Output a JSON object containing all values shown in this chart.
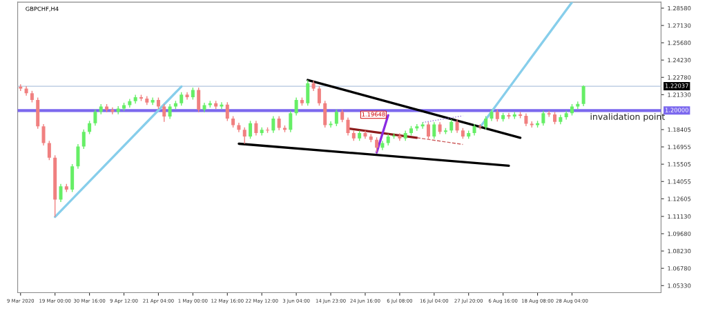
{
  "chart_data": {
    "type": "candlestick",
    "title": "GBPCHF,H4",
    "categories": [
      "9 Mar 2020",
      null,
      null,
      null,
      null,
      null,
      "19 Mar 00:00",
      null,
      null,
      null,
      null,
      null,
      "30 Mar 16:00",
      null,
      null,
      null,
      null,
      null,
      "9 Apr 12:00",
      null,
      null,
      null,
      null,
      null,
      "21 Apr 04:00",
      null,
      null,
      null,
      null,
      null,
      "1 May 00:00",
      null,
      null,
      null,
      null,
      null,
      "12 May 16:00",
      null,
      null,
      null,
      null,
      null,
      "22 May 12:00",
      null,
      null,
      null,
      null,
      null,
      "3 Jun 04:00",
      null,
      null,
      null,
      null,
      null,
      "14 Jun 23:00",
      null,
      null,
      null,
      null,
      null,
      "24 Jun 16:00",
      null,
      null,
      null,
      null,
      null,
      "6 Jul 08:00",
      null,
      null,
      null,
      null,
      null,
      "16 Jul 04:00",
      null,
      null,
      null,
      null,
      null,
      "27 Jul 20:00",
      null,
      null,
      null,
      null,
      null,
      "6 Aug 16:00",
      null,
      null,
      null,
      null,
      null,
      "18 Aug 08:00",
      null,
      null,
      null,
      null,
      null,
      "28 Aug 04:00",
      null,
      null,
      null,
      null,
      null,
      null,
      null,
      null,
      null,
      null,
      null,
      null,
      null,
      null,
      null
    ],
    "ohlc": [
      [
        1.22,
        1.222,
        1.2164,
        1.2184
      ],
      [
        1.2184,
        1.2204,
        1.2125,
        1.2145
      ],
      [
        1.2145,
        1.2165,
        1.2069,
        1.2089
      ],
      [
        1.2089,
        1.2109,
        1.1847,
        1.1867
      ],
      [
        1.1867,
        1.1887,
        1.1707,
        1.1727
      ],
      [
        1.1727,
        1.1747,
        1.1585,
        1.1605
      ],
      [
        1.1605,
        1.1625,
        1.1109,
        1.1254
      ],
      [
        1.1254,
        1.1385,
        1.1234,
        1.1365
      ],
      [
        1.1365,
        1.1385,
        1.1317,
        1.1337
      ],
      [
        1.1337,
        1.1552,
        1.1317,
        1.1532
      ],
      [
        1.1532,
        1.1719,
        1.1512,
        1.1699
      ],
      [
        1.1699,
        1.1842,
        1.1679,
        1.1822
      ],
      [
        1.1822,
        1.1914,
        1.1802,
        1.1894
      ],
      [
        1.1894,
        1.2009,
        1.1874,
        1.1989
      ],
      [
        1.1989,
        1.2054,
        1.1969,
        1.2034
      ],
      [
        1.2034,
        1.2054,
        1.1986,
        1.2006
      ],
      [
        1.2006,
        1.2026,
        1.1969,
        1.1989
      ],
      [
        1.1989,
        1.2037,
        1.1969,
        1.2017
      ],
      [
        1.2017,
        1.2065,
        1.1997,
        1.2045
      ],
      [
        1.2045,
        1.2098,
        1.2025,
        1.2078
      ],
      [
        1.2078,
        1.2132,
        1.2058,
        1.2112
      ],
      [
        1.2112,
        1.2132,
        1.208,
        1.21
      ],
      [
        1.21,
        1.212,
        1.2047,
        1.2067
      ],
      [
        1.2067,
        1.2109,
        1.2047,
        1.2089
      ],
      [
        1.2089,
        1.2109,
        1.2014,
        1.2034
      ],
      [
        1.2034,
        1.2054,
        1.1905,
        1.195
      ],
      [
        1.195,
        1.2054,
        1.193,
        1.2034
      ],
      [
        1.2034,
        1.2081,
        1.2014,
        1.2061
      ],
      [
        1.2061,
        1.2154,
        1.2041,
        1.2134
      ],
      [
        1.2134,
        1.2154,
        1.2092,
        1.2112
      ],
      [
        1.2112,
        1.2193,
        1.2092,
        1.2173
      ],
      [
        1.2173,
        1.2193,
        1.1986,
        1.2006
      ],
      [
        1.2006,
        1.2065,
        1.1986,
        1.2045
      ],
      [
        1.2045,
        1.2081,
        1.2025,
        1.2061
      ],
      [
        1.2061,
        1.2081,
        1.2014,
        1.2034
      ],
      [
        1.2034,
        1.207,
        1.2014,
        1.205
      ],
      [
        1.205,
        1.207,
        1.1913,
        1.1933
      ],
      [
        1.1933,
        1.1953,
        1.1858,
        1.1878
      ],
      [
        1.1878,
        1.1898,
        1.1819,
        1.1839
      ],
      [
        1.1839,
        1.1859,
        1.1722,
        1.1783
      ],
      [
        1.1783,
        1.1914,
        1.1763,
        1.1894
      ],
      [
        1.1894,
        1.1914,
        1.1791,
        1.1811
      ],
      [
        1.1811,
        1.1859,
        1.1791,
        1.1839
      ],
      [
        1.1839,
        1.1859,
        1.1813,
        1.1833
      ],
      [
        1.1833,
        1.1953,
        1.1813,
        1.1933
      ],
      [
        1.1933,
        1.1953,
        1.1835,
        1.1855
      ],
      [
        1.1855,
        1.1875,
        1.1819,
        1.1839
      ],
      [
        1.1839,
        1.1998,
        1.1819,
        1.1978
      ],
      [
        1.1978,
        1.2109,
        1.1958,
        1.2089
      ],
      [
        1.2089,
        1.2109,
        1.2041,
        1.2061
      ],
      [
        1.2061,
        1.2256,
        1.2041,
        1.2229
      ],
      [
        1.2229,
        1.2249,
        1.2164,
        1.2184
      ],
      [
        1.2184,
        1.2204,
        1.2041,
        1.2061
      ],
      [
        1.2061,
        1.2081,
        1.1858,
        1.1878
      ],
      [
        1.1878,
        1.1909,
        1.1858,
        1.1889
      ],
      [
        1.1889,
        1.2009,
        1.1869,
        1.1989
      ],
      [
        1.1989,
        1.2009,
        1.1902,
        1.1922
      ],
      [
        1.1922,
        1.1942,
        1.1791,
        1.1811
      ],
      [
        1.1811,
        1.1831,
        1.1746,
        1.1766
      ],
      [
        1.1766,
        1.1831,
        1.1746,
        1.1811
      ],
      [
        1.1811,
        1.1831,
        1.1763,
        1.1783
      ],
      [
        1.1783,
        1.1803,
        1.1735,
        1.1755
      ],
      [
        1.1755,
        1.1775,
        1.1649,
        1.1688
      ],
      [
        1.1688,
        1.1747,
        1.1668,
        1.1727
      ],
      [
        1.1727,
        1.1803,
        1.1707,
        1.1783
      ],
      [
        1.1783,
        1.181,
        1.1763,
        1.179
      ],
      [
        1.179,
        1.181,
        1.1746,
        1.1766
      ],
      [
        1.1766,
        1.1831,
        1.1746,
        1.1811
      ],
      [
        1.1811,
        1.187,
        1.1791,
        1.185
      ],
      [
        1.185,
        1.1887,
        1.183,
        1.1867
      ],
      [
        1.1867,
        1.1903,
        1.1847,
        1.1883
      ],
      [
        1.1883,
        1.1903,
        1.1763,
        1.1783
      ],
      [
        1.1783,
        1.1903,
        1.1763,
        1.1883
      ],
      [
        1.1883,
        1.1903,
        1.1802,
        1.1822
      ],
      [
        1.1822,
        1.1853,
        1.1802,
        1.1833
      ],
      [
        1.1833,
        1.1925,
        1.1813,
        1.1905
      ],
      [
        1.1905,
        1.1925,
        1.1813,
        1.1833
      ],
      [
        1.1833,
        1.1853,
        1.1763,
        1.1783
      ],
      [
        1.1783,
        1.1831,
        1.1763,
        1.1811
      ],
      [
        1.1811,
        1.1887,
        1.1791,
        1.1867
      ],
      [
        1.1867,
        1.1887,
        1.1841,
        1.1861
      ],
      [
        1.1861,
        1.1953,
        1.1841,
        1.1933
      ],
      [
        1.1933,
        1.2009,
        1.1913,
        1.1989
      ],
      [
        1.1989,
        1.2009,
        1.1908,
        1.1928
      ],
      [
        1.1928,
        1.1981,
        1.1908,
        1.1961
      ],
      [
        1.1961,
        1.1981,
        1.193,
        1.195
      ],
      [
        1.195,
        1.1987,
        1.193,
        1.1967
      ],
      [
        1.1967,
        1.1987,
        1.1936,
        1.1956
      ],
      [
        1.1956,
        1.1976,
        1.1869,
        1.1889
      ],
      [
        1.1889,
        1.1909,
        1.1858,
        1.1878
      ],
      [
        1.1878,
        1.1914,
        1.1858,
        1.1894
      ],
      [
        1.1894,
        1.1998,
        1.1874,
        1.1978
      ],
      [
        1.1978,
        1.1998,
        1.1947,
        1.1967
      ],
      [
        1.1967,
        1.1987,
        1.1885,
        1.1905
      ],
      [
        1.1905,
        1.1964,
        1.1885,
        1.1944
      ],
      [
        1.1944,
        1.1998,
        1.1924,
        1.1978
      ],
      [
        1.1978,
        1.2054,
        1.1958,
        1.2034
      ],
      [
        1.2034,
        1.2076,
        1.2014,
        1.2056
      ],
      [
        1.2056,
        1.2212,
        1.2036,
        1.2204
      ],
      null,
      null,
      null,
      null,
      null,
      null,
      null,
      null,
      null,
      null,
      null,
      null,
      null
    ],
    "series": [
      {
        "type": "line",
        "color": "#87ceeb",
        "values": [
          null,
          null,
          null,
          null,
          null,
          null,
          1.1109,
          null,
          null,
          null,
          null,
          null,
          null,
          null,
          null,
          null,
          null,
          null,
          null,
          null,
          null,
          null,
          null,
          null,
          null,
          null,
          null,
          null,
          1.2201,
          null,
          null,
          null,
          null,
          null,
          null,
          null,
          null,
          null,
          null,
          null,
          null,
          null,
          null,
          null,
          null,
          null,
          null,
          null,
          null,
          null,
          null,
          null,
          null,
          null,
          null,
          null,
          null,
          null,
          null,
          null,
          null,
          null,
          null,
          null,
          null,
          null,
          null,
          null,
          null,
          null,
          null,
          null,
          null,
          null,
          null,
          null,
          null,
          null,
          null,
          null,
          null,
          null,
          null,
          null,
          null,
          null,
          null,
          null,
          null,
          null,
          null,
          null,
          null,
          null,
          null,
          null,
          null,
          null,
          null,
          null,
          null,
          null,
          null,
          null,
          null,
          null,
          null,
          null,
          null,
          null,
          null,
          null
        ]
      },
      {
        "type": "line",
        "color": "#87ceeb",
        "values": [
          null,
          null,
          null,
          null,
          null,
          null,
          null,
          null,
          null,
          null,
          null,
          null,
          null,
          null,
          null,
          null,
          null,
          null,
          null,
          null,
          null,
          null,
          null,
          null,
          null,
          null,
          null,
          null,
          null,
          null,
          null,
          null,
          null,
          null,
          null,
          null,
          null,
          null,
          null,
          null,
          null,
          null,
          null,
          null,
          null,
          null,
          null,
          null,
          null,
          null,
          null,
          null,
          null,
          null,
          null,
          null,
          null,
          null,
          null,
          null,
          null,
          null,
          null,
          null,
          null,
          null,
          null,
          null,
          null,
          null,
          null,
          null,
          null,
          null,
          null,
          null,
          null,
          null,
          null,
          null,
          1.1861,
          null,
          null,
          null,
          null,
          null,
          null,
          null,
          null,
          null,
          null,
          null,
          null,
          null,
          null,
          null,
          1.2908,
          null,
          null,
          null,
          null,
          null,
          null,
          null,
          null,
          null,
          null,
          null,
          null,
          null,
          null,
          null
        ]
      },
      {
        "type": "line",
        "color": "#000000",
        "values": [
          null,
          null,
          null,
          null,
          null,
          null,
          null,
          null,
          null,
          null,
          null,
          null,
          null,
          null,
          null,
          null,
          null,
          null,
          null,
          null,
          null,
          null,
          null,
          null,
          null,
          null,
          null,
          null,
          null,
          null,
          null,
          null,
          null,
          null,
          null,
          null,
          null,
          null,
          null,
          null,
          null,
          null,
          null,
          null,
          null,
          null,
          null,
          null,
          null,
          null,
          1.2256,
          null,
          null,
          null,
          null,
          null,
          null,
          null,
          null,
          null,
          null,
          null,
          null,
          null,
          null,
          null,
          null,
          null,
          null,
          null,
          null,
          null,
          null,
          null,
          null,
          null,
          null,
          null,
          null,
          null,
          null,
          null,
          null,
          null,
          null,
          null,
          null,
          1.1772,
          null,
          null,
          null,
          null,
          null,
          null,
          null,
          null,
          null,
          null,
          null,
          null,
          null,
          null,
          null,
          null,
          null,
          null,
          null,
          null,
          null,
          null,
          null,
          null
        ]
      },
      {
        "type": "line",
        "color": "#000000",
        "values": [
          null,
          null,
          null,
          null,
          null,
          null,
          null,
          null,
          null,
          null,
          null,
          null,
          null,
          null,
          null,
          null,
          null,
          null,
          null,
          null,
          null,
          null,
          null,
          null,
          null,
          null,
          null,
          null,
          null,
          null,
          null,
          null,
          null,
          null,
          null,
          null,
          null,
          null,
          1.1722,
          null,
          null,
          null,
          null,
          null,
          null,
          null,
          null,
          null,
          null,
          null,
          null,
          null,
          null,
          null,
          null,
          null,
          null,
          null,
          null,
          null,
          null,
          null,
          null,
          null,
          null,
          null,
          null,
          null,
          null,
          null,
          null,
          null,
          null,
          null,
          null,
          null,
          null,
          null,
          null,
          null,
          null,
          null,
          null,
          null,
          null,
          1.1538,
          null,
          null,
          null,
          null,
          null,
          null,
          null,
          null,
          null,
          null,
          null,
          null,
          null,
          null,
          null,
          null,
          null,
          null,
          null,
          null,
          null,
          null,
          null,
          null,
          null,
          null
        ]
      },
      {
        "type": "line",
        "color": "#8b1a1a",
        "values": [
          null,
          null,
          null,
          null,
          null,
          null,
          null,
          null,
          null,
          null,
          null,
          null,
          null,
          null,
          null,
          null,
          null,
          null,
          null,
          null,
          null,
          null,
          null,
          null,
          null,
          null,
          null,
          null,
          null,
          null,
          null,
          null,
          null,
          null,
          null,
          null,
          null,
          null,
          null,
          null,
          null,
          null,
          null,
          null,
          null,
          null,
          null,
          null,
          null,
          null,
          null,
          null,
          null,
          null,
          null,
          null,
          null,
          1.185,
          null,
          null,
          null,
          null,
          null,
          null,
          null,
          null,
          null,
          null,
          null,
          1.1772,
          null,
          null,
          null,
          null,
          null,
          null,
          null,
          null,
          null,
          null,
          null,
          null,
          null,
          null,
          null,
          null,
          null,
          null,
          null,
          null,
          null,
          null,
          null,
          null,
          null,
          null,
          null,
          null,
          null,
          null,
          null,
          null,
          null,
          null,
          null,
          null,
          null,
          null,
          null,
          null,
          null,
          null
        ]
      },
      {
        "type": "line",
        "color": "#cd5c5c",
        "line_style": "dashed",
        "values": [
          null,
          null,
          null,
          null,
          null,
          null,
          null,
          null,
          null,
          null,
          null,
          null,
          null,
          null,
          null,
          null,
          null,
          null,
          null,
          null,
          null,
          null,
          null,
          null,
          null,
          null,
          null,
          null,
          null,
          null,
          null,
          null,
          null,
          null,
          null,
          null,
          null,
          null,
          null,
          null,
          null,
          null,
          null,
          null,
          null,
          null,
          null,
          null,
          null,
          null,
          null,
          null,
          null,
          null,
          null,
          null,
          null,
          null,
          null,
          null,
          null,
          null,
          null,
          null,
          null,
          null,
          null,
          null,
          null,
          1.1772,
          null,
          null,
          null,
          null,
          null,
          null,
          null,
          1.1716,
          null,
          null,
          null,
          null,
          null,
          null,
          null,
          null,
          null,
          null,
          null,
          null,
          null,
          null,
          null,
          null,
          null,
          null,
          null,
          null,
          null,
          null,
          null,
          null,
          null,
          null,
          null,
          null,
          null,
          null,
          null,
          null,
          null,
          null
        ]
      },
      {
        "type": "line",
        "color": "#9370db",
        "line_style": "dotted",
        "values": [
          null,
          null,
          null,
          null,
          null,
          null,
          null,
          null,
          null,
          null,
          null,
          null,
          null,
          null,
          null,
          null,
          null,
          null,
          null,
          null,
          null,
          null,
          null,
          null,
          null,
          null,
          null,
          null,
          null,
          null,
          null,
          null,
          null,
          null,
          null,
          null,
          null,
          null,
          null,
          null,
          null,
          null,
          null,
          null,
          null,
          null,
          null,
          null,
          null,
          null,
          null,
          null,
          null,
          null,
          null,
          null,
          null,
          null,
          null,
          null,
          null,
          null,
          null,
          null,
          null,
          null,
          null,
          null,
          null,
          null,
          1.19,
          null,
          null,
          null,
          null,
          null,
          null,
          1.1956,
          null,
          null,
          null,
          null,
          null,
          null,
          null,
          null,
          null,
          null,
          null,
          null,
          null,
          null,
          null,
          null,
          null,
          null,
          null,
          null,
          null,
          null,
          null,
          null,
          null,
          null,
          null,
          null,
          null,
          null,
          null,
          null,
          null,
          null
        ]
      },
      {
        "type": "line",
        "color": "#8a2be2",
        "values": [
          null,
          null,
          null,
          null,
          null,
          null,
          null,
          null,
          null,
          null,
          null,
          null,
          null,
          null,
          null,
          null,
          null,
          null,
          null,
          null,
          null,
          null,
          null,
          null,
          null,
          null,
          null,
          null,
          null,
          null,
          null,
          null,
          null,
          null,
          null,
          null,
          null,
          null,
          null,
          null,
          null,
          null,
          null,
          null,
          null,
          null,
          null,
          null,
          null,
          null,
          null,
          null,
          null,
          null,
          null,
          null,
          null,
          null,
          null,
          null,
          null,
          null,
          1.1649,
          null,
          1.1961,
          null,
          null,
          null,
          null,
          null,
          null,
          null,
          null,
          null,
          null,
          null,
          null,
          null,
          null,
          null,
          null,
          null,
          null,
          null,
          null,
          null,
          null,
          null,
          null,
          null,
          null,
          null,
          null,
          null,
          null,
          null,
          null,
          null,
          null,
          null,
          null,
          null,
          null,
          null,
          null,
          null,
          null,
          null,
          null,
          null,
          null,
          null
        ]
      }
    ],
    "ref_lines": [
      {
        "axis": "y",
        "value": 1.2,
        "label": "invalidation point",
        "color": "#7b68ee"
      },
      {
        "axis": "y",
        "value": 1.22037,
        "color": "#b0c4de"
      }
    ],
    "annotations": [
      "1.20000",
      "1.22037",
      {
        "text": "1.19648",
        "y": 1.19648
      }
    ],
    "ylim": [
      1.0474,
      1.2908
    ],
    "yticks": [
      {
        "value": 1.2858,
        "label": "1.28580"
      },
      {
        "value": 1.2713,
        "label": "1.27130"
      },
      {
        "value": 1.2568,
        "label": "1.25680"
      },
      {
        "value": 1.2423,
        "label": "1.24230"
      },
      {
        "value": 1.2278,
        "label": "1.22780"
      },
      {
        "value": 1.2133,
        "label": "1.21330"
      },
      1.18405,
      1.16955,
      1.15505,
      1.14055,
      1.12605,
      {
        "value": 1.1113,
        "label": "1.11130"
      },
      {
        "value": 1.0968,
        "label": "1.09680"
      },
      {
        "value": 1.0823,
        "label": "1.08230"
      },
      {
        "value": 1.0678,
        "label": "1.06780"
      },
      {
        "value": 1.0533,
        "label": "1.05330"
      }
    ]
  }
}
